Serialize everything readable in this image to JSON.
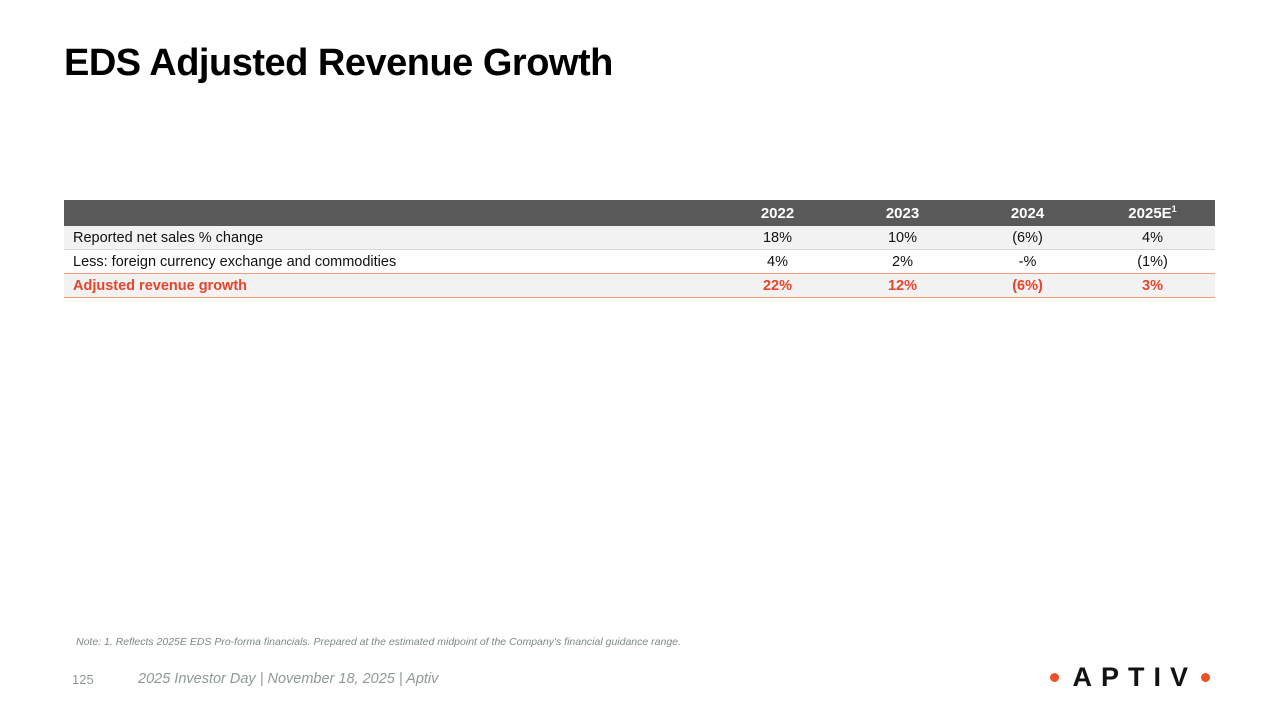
{
  "slide": {
    "title": "EDS Adjusted Revenue Growth",
    "note": "Note: 1. Reflects 2025E EDS Pro-forma financials. Prepared at the estimated midpoint of the Company's financial guidance range.",
    "footer": {
      "page_number": "125",
      "text": "2025 Investor Day | November 18, 2025 | Aptiv"
    },
    "logo": {
      "text": "APTIV"
    }
  },
  "table": {
    "columns": [
      {
        "label": "2022",
        "superscript": ""
      },
      {
        "label": "2023",
        "superscript": ""
      },
      {
        "label": "2024",
        "superscript": ""
      },
      {
        "label": "2025E",
        "superscript": "1"
      }
    ],
    "rows": [
      {
        "label": "Reported net sales % change",
        "values": [
          "18%",
          "10%",
          "(6%)",
          "4%"
        ],
        "emphasis": false
      },
      {
        "label": "Less: foreign currency exchange and commodities",
        "values": [
          "4%",
          "2%",
          "-%",
          "(1%)"
        ],
        "emphasis": false
      },
      {
        "label": "Adjusted revenue growth",
        "values": [
          "22%",
          "12%",
          "(6%)",
          "3%"
        ],
        "emphasis": true
      }
    ]
  },
  "colors": {
    "accent_orange": "#e8432b",
    "accent_border": "#f09a7c",
    "header_bg": "#595959",
    "header_text": "#ffffff",
    "row_stripe": "#f2f2f2",
    "divider_gray": "#d8d8d8",
    "footer_gray": "#8e9898",
    "note_gray": "#7d8888",
    "logo_dot": "#f04e24"
  }
}
